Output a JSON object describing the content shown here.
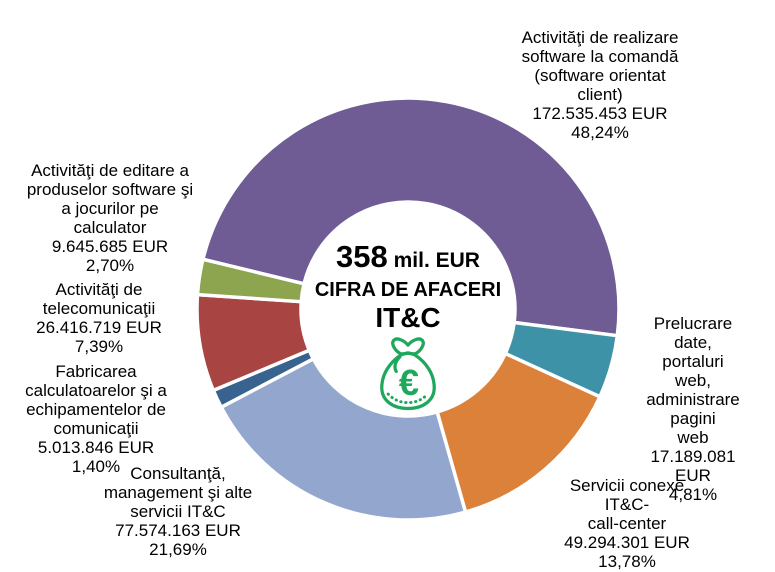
{
  "chart_data": {
    "type": "pie",
    "variant": "donut",
    "start_angle_deg": 283.6,
    "slice_gap_color": "#ffffff",
    "legend_position": "none",
    "labels_outside": true,
    "slices": [
      {
        "key": "software-comanda",
        "name": "Activităţi de realizare software la comandă (software orientat client)",
        "value_eur": "172.535.453 EUR",
        "pct": 48.24,
        "pct_label": "48,24%",
        "color": "#6F5C94",
        "label_lines": [
          "Activităţi de realizare",
          "software la comandă",
          "(software orientat",
          "client)",
          "172.535.453 EUR",
          "48,24%"
        ]
      },
      {
        "key": "prelucrare-date",
        "name": "Prelucrare date, portaluri web, administrare pagini web",
        "value_eur": "17.189.081 EUR",
        "pct": 4.81,
        "pct_label": "4,81%",
        "color": "#3E92A7",
        "label_lines": [
          "Prelucrare date,",
          "portaluri web,",
          "administrare pagini",
          "web",
          "17.189.081 EUR",
          "4,81%"
        ]
      },
      {
        "key": "servicii-conexe",
        "name": "Servicii conexe IT&C-call-center",
        "value_eur": "49.294.301 EUR",
        "pct": 13.78,
        "pct_label": "13,78%",
        "color": "#DC8139",
        "label_lines": [
          "Servicii conexe IT&C-",
          "call-center",
          "49.294.301 EUR",
          "13,78%"
        ]
      },
      {
        "key": "consultanta",
        "name": "Consultanţă, management şi alte servicii IT&C",
        "value_eur": "77.574.163 EUR",
        "pct": 21.69,
        "pct_label": "21,69%",
        "color": "#93A6CE",
        "label_lines": [
          "Consultanţă,",
          "management şi alte",
          "servicii IT&C",
          "77.574.163 EUR",
          "21,69%"
        ]
      },
      {
        "key": "fabricarea-calculatoarelor",
        "name": "Fabricarea calculatoarelor şi a echipamentelor de comunicaţii",
        "value_eur": "5.013.846 EUR",
        "pct": 1.4,
        "pct_label": "1,40%",
        "color": "#38638F",
        "label_lines": [
          "Fabricarea",
          "calculatoarelor şi a",
          "echipamentelor de",
          "comunicaţii",
          "5.013.846 EUR",
          "1,40%"
        ]
      },
      {
        "key": "telecomunicatii",
        "name": "Activităţi de telecomunicaţii",
        "value_eur": "26.416.719 EUR",
        "pct": 7.39,
        "pct_label": "7,39%",
        "color": "#A84441",
        "label_lines": [
          "Activităţi de",
          "telecomunicaţii",
          "26.416.719 EUR",
          "7,39%"
        ]
      },
      {
        "key": "editare-software",
        "name": "Activităţi de editare a produselor software şi a jocurilor pe calculator",
        "value_eur": "9.645.685 EUR",
        "pct": 2.7,
        "pct_label": "2,70%",
        "color": "#8CA54E",
        "label_lines": [
          "Activităţi de editare a",
          "produselor software şi",
          "a jocurilor pe",
          "calculator",
          "9.645.685 EUR",
          "2,70%"
        ]
      }
    ],
    "center": {
      "value": "358",
      "value_suffix": " mil. EUR",
      "line2": "CIFRA DE AFACERI",
      "line3": "IT&C",
      "icon": "money-bag-euro-icon",
      "icon_color": "#1FA75C"
    }
  }
}
